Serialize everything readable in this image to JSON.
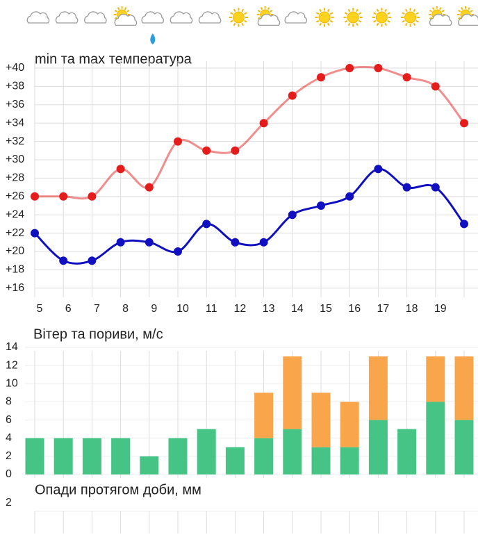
{
  "chart_data": [
    {
      "type": "line",
      "title": "min та max температура",
      "categories": [
        "5",
        "6",
        "7",
        "8",
        "9",
        "10",
        "11",
        "12",
        "13",
        "14",
        "15",
        "16",
        "17",
        "18",
        "19",
        null
      ],
      "series": [
        {
          "color": "#e51c1c",
          "values": [
            26,
            26,
            26,
            29,
            27,
            32,
            31,
            31,
            34,
            37,
            39,
            40,
            40,
            39,
            38,
            34
          ]
        },
        {
          "color": "#1010c0",
          "values": [
            22,
            19,
            19,
            21,
            21,
            20,
            23,
            21,
            21,
            24,
            25,
            26,
            29,
            27,
            27,
            23
          ]
        }
      ],
      "ylim": [
        15,
        40
      ],
      "yticks": [
        {
          "value": 16,
          "label": "+16"
        },
        {
          "value": 18,
          "label": "+18"
        },
        {
          "value": 20,
          "label": "+20"
        },
        {
          "value": 22,
          "label": "+22"
        },
        {
          "value": 24,
          "label": "+24"
        },
        {
          "value": 26,
          "label": "+26"
        },
        {
          "value": 28,
          "label": "+28"
        },
        {
          "value": 30,
          "label": "+30"
        },
        {
          "value": 32,
          "label": "+32"
        },
        {
          "value": 34,
          "label": "+34"
        },
        {
          "value": 36,
          "label": "+36"
        },
        {
          "value": 38,
          "label": "+38"
        },
        {
          "value": 40,
          "label": "+40"
        }
      ],
      "grid": true
    },
    {
      "type": "stacked_bar",
      "title": "Вітер та пориви, м/с",
      "series": [
        {
          "color": "#45c486",
          "values": [
            4,
            4,
            4,
            4,
            2,
            4,
            5,
            3,
            4,
            5,
            3,
            3,
            6,
            5,
            8,
            6
          ]
        },
        {
          "color": "#f9a54c",
          "values": [
            null,
            null,
            null,
            null,
            null,
            null,
            null,
            null,
            5,
            8,
            6,
            5,
            7,
            null,
            5,
            7
          ]
        }
      ],
      "ylim": [
        0,
        14
      ],
      "yticks": [
        0,
        2,
        4,
        6,
        8,
        10,
        12,
        14
      ],
      "grid": true
    },
    {
      "type": "bar",
      "title": "Опади протягом доби, мм",
      "ylim": [
        0,
        2
      ],
      "yticks": [
        2
      ],
      "grid": true
    }
  ]
}
